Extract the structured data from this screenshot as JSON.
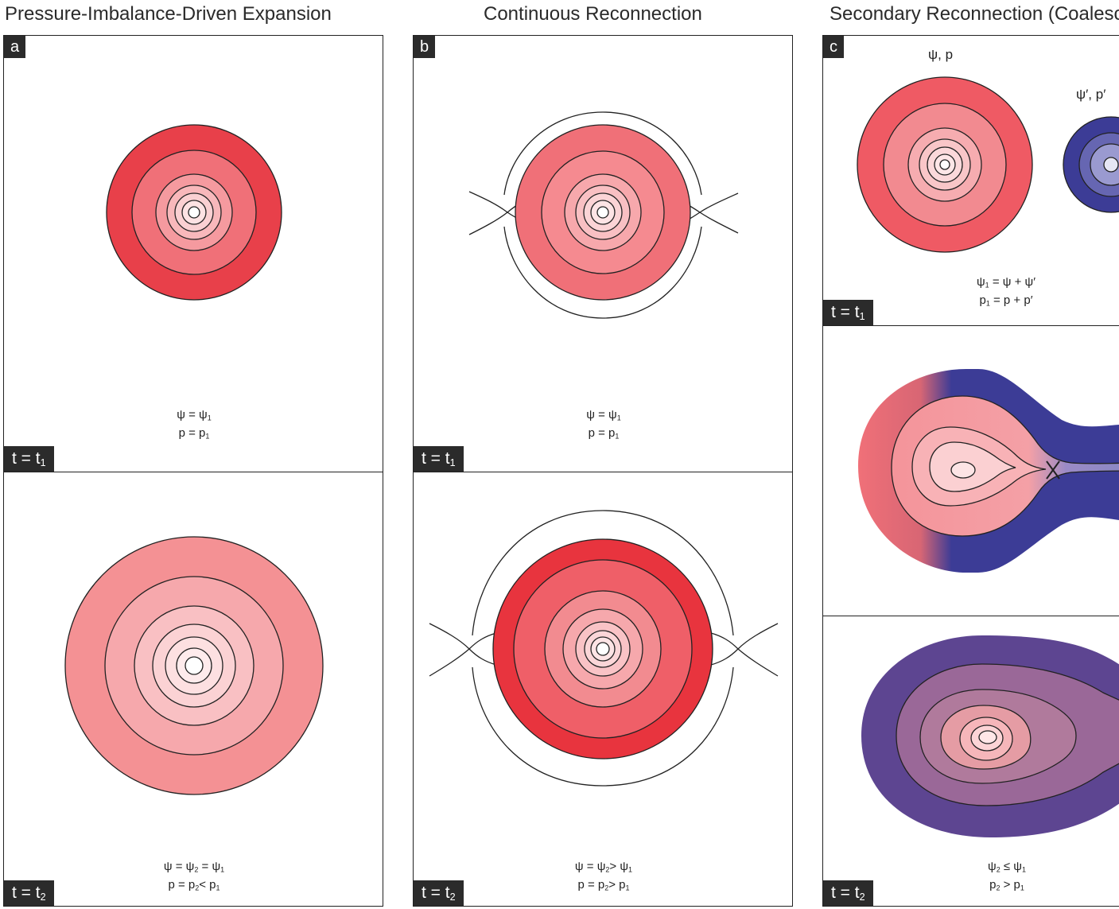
{
  "columns": [
    {
      "title": "Pressure-Imbalance-Driven Expansion",
      "letter": "a"
    },
    {
      "title": "Continuous Reconnection",
      "letter": "b"
    },
    {
      "title": "Secondary Reconnection (Coalescence)",
      "letter": "c"
    }
  ],
  "labels": {
    "a_top": {
      "time": "t = t",
      "time_sub": "1",
      "eq1": "ψ = ψ",
      "eq1_sub": "1",
      "eq2": "p = p",
      "eq2_sub": "1"
    },
    "a_bottom": {
      "time": "t = t",
      "time_sub": "2",
      "eq1": "ψ = ψ",
      "eq1_sub": "2",
      "eq1_tail": " = ψ",
      "eq1_tail_sub": "1",
      "eq2": "p = p",
      "eq2_sub": "2",
      "eq2_tail": "< p",
      "eq2_tail_sub": "1"
    },
    "b_top": {
      "time": "t = t",
      "time_sub": "1",
      "eq1": "ψ = ψ",
      "eq1_sub": "1",
      "eq2": "p = p",
      "eq2_sub": "1"
    },
    "b_bottom": {
      "time": "t = t",
      "time_sub": "2",
      "eq1": "ψ = ψ",
      "eq1_sub": "2",
      "eq1_tail": "> ψ",
      "eq1_tail_sub": "1",
      "eq2": "p = p",
      "eq2_sub": "2",
      "eq2_tail": "> p",
      "eq2_tail_sub": "1"
    },
    "c_top": {
      "time": "t = t",
      "time_sub": "1",
      "var1": "ψ, p",
      "var2": "ψ′, p′",
      "eq1": "ψ",
      "eq1_sub": "1",
      "eq1_tail": " = ψ + ψ′",
      "eq2": "p",
      "eq2_sub": "1",
      "eq2_tail": " = p + p′"
    },
    "c_bottom": {
      "time": "t = t",
      "time_sub": "2",
      "eq1": "ψ",
      "eq1_sub": "2",
      "eq1_tail": " ≤ ψ",
      "eq1_tail_sub": "1",
      "eq2": "p",
      "eq2_sub": "2",
      "eq2_tail": " > p",
      "eq2_tail_sub": "1"
    }
  },
  "colors": {
    "red_dark": "#e8404a",
    "red_mid": "#f07078",
    "red_light": "#f6a8ac",
    "red_pale": "#fbd8da",
    "pink_soft": "#f49194",
    "blue_dark": "#3c3c96",
    "blue_mid": "#6868b4",
    "blue_light": "#a0a0d0",
    "purple_dark": "#5a4490",
    "purple_mid": "#9a6896",
    "line": "#222222"
  }
}
